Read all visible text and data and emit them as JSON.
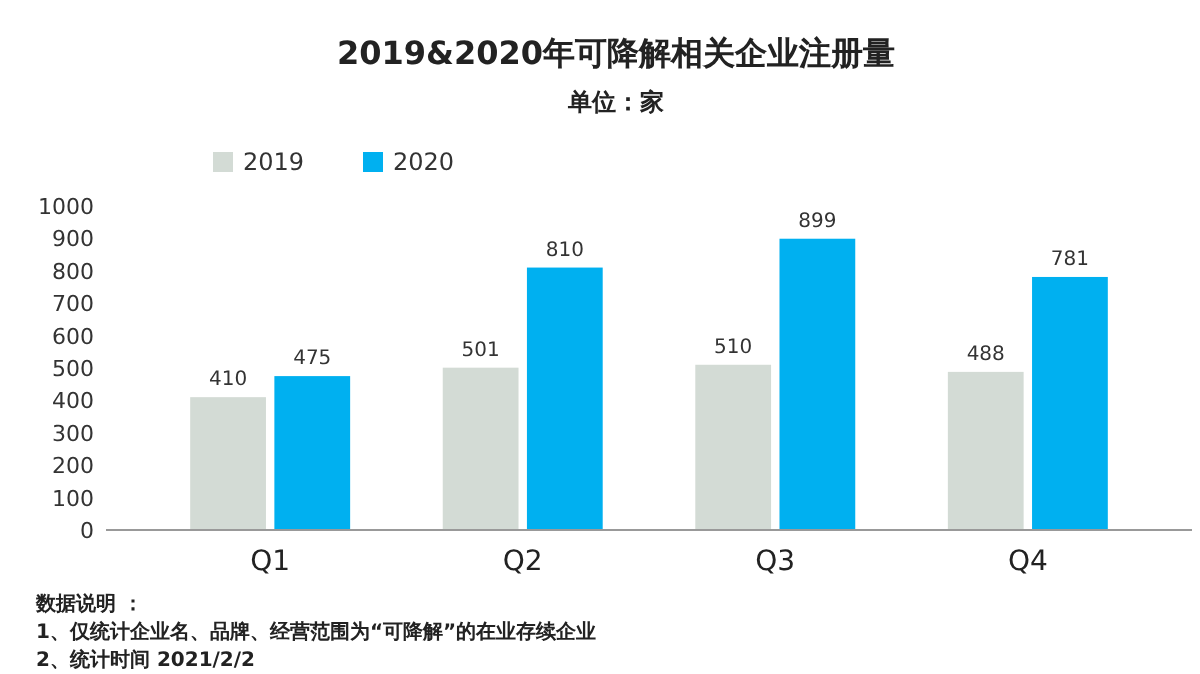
{
  "chart_data": {
    "type": "bar",
    "title": "2019&2020年可降解相关企业注册量",
    "subtitle": "单位：家",
    "categories": [
      "Q1",
      "Q2",
      "Q3",
      "Q4"
    ],
    "series": [
      {
        "name": "2019",
        "color": "#d3dbd5",
        "values": [
          410,
          501,
          510,
          488
        ]
      },
      {
        "name": "2020",
        "color": "#00b0f0",
        "values": [
          475,
          810,
          899,
          781
        ]
      }
    ],
    "ylim": [
      0,
      1000
    ],
    "yticks": [
      0,
      100,
      200,
      300,
      400,
      500,
      600,
      700,
      800,
      900,
      1000
    ],
    "data_labels": true,
    "legend": "top",
    "grid": false,
    "annotations": [
      "数据说明 ：",
      "1、仅统计企业名、品牌、经营范围为“可降解”的在业存续企业",
      "2、统计时间 2021/2/2"
    ]
  }
}
